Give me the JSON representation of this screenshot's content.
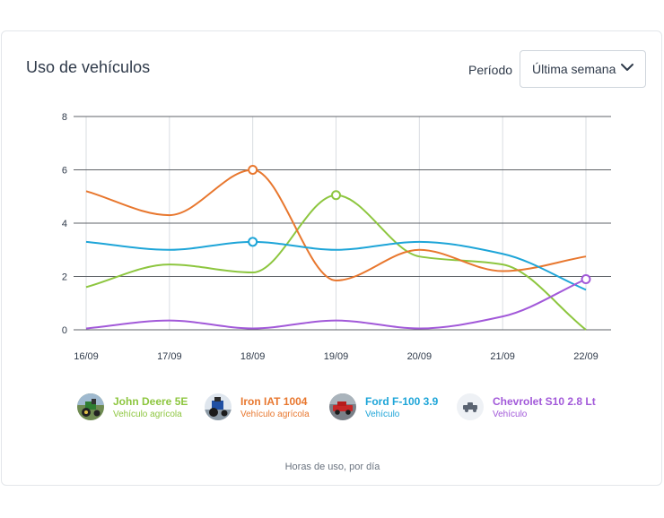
{
  "card": {
    "title": "Uso de vehículos",
    "period_label": "Período",
    "period_value": "Última semana",
    "footnote": "Horas de uso, por día"
  },
  "legend": [
    {
      "name": "John Deere 5E",
      "subtitle": "Vehículo agrícola",
      "color": "#8dc63f",
      "icon": "tractor-green-photo"
    },
    {
      "name": "Iron IAT 1004",
      "subtitle": "Vehículo agrícola",
      "color": "#e8772e",
      "icon": "tractor-blue-photo"
    },
    {
      "name": "Ford F-100 3.9",
      "subtitle": "Vehículo",
      "color": "#1ea5d8",
      "icon": "pickup-red-photo"
    },
    {
      "name": "Chevrolet S10 2.8 Lt",
      "subtitle": "Vehículo",
      "color": "#a259d9",
      "icon": "pickup-placeholder-icon"
    }
  ],
  "chart_data": {
    "type": "line",
    "x": [
      "16/09",
      "17/09",
      "18/09",
      "19/09",
      "20/09",
      "21/09",
      "22/09"
    ],
    "ylim": [
      0,
      8
    ],
    "yticks": [
      "0",
      "2",
      "4",
      "6",
      "8"
    ],
    "grid": true,
    "series": [
      {
        "name": "John Deere 5E",
        "color": "#8dc63f",
        "values": [
          1.6,
          2.45,
          2.15,
          5.05,
          2.75,
          2.45,
          0.0
        ],
        "marker_index": 3
      },
      {
        "name": "Iron IAT 1004",
        "color": "#e8772e",
        "values": [
          5.2,
          4.3,
          6.0,
          1.85,
          3.0,
          2.2,
          2.75
        ],
        "marker_index": 2
      },
      {
        "name": "Ford F-100 3.9",
        "color": "#1ea5d8",
        "values": [
          3.3,
          3.0,
          3.3,
          3.0,
          3.3,
          2.85,
          1.5
        ],
        "marker_index": 2
      },
      {
        "name": "Chevrolet S10 2.8 Lt",
        "color": "#a259d9",
        "values": [
          0.05,
          0.35,
          0.05,
          0.35,
          0.05,
          0.5,
          1.9
        ],
        "marker_index": 6
      }
    ]
  }
}
